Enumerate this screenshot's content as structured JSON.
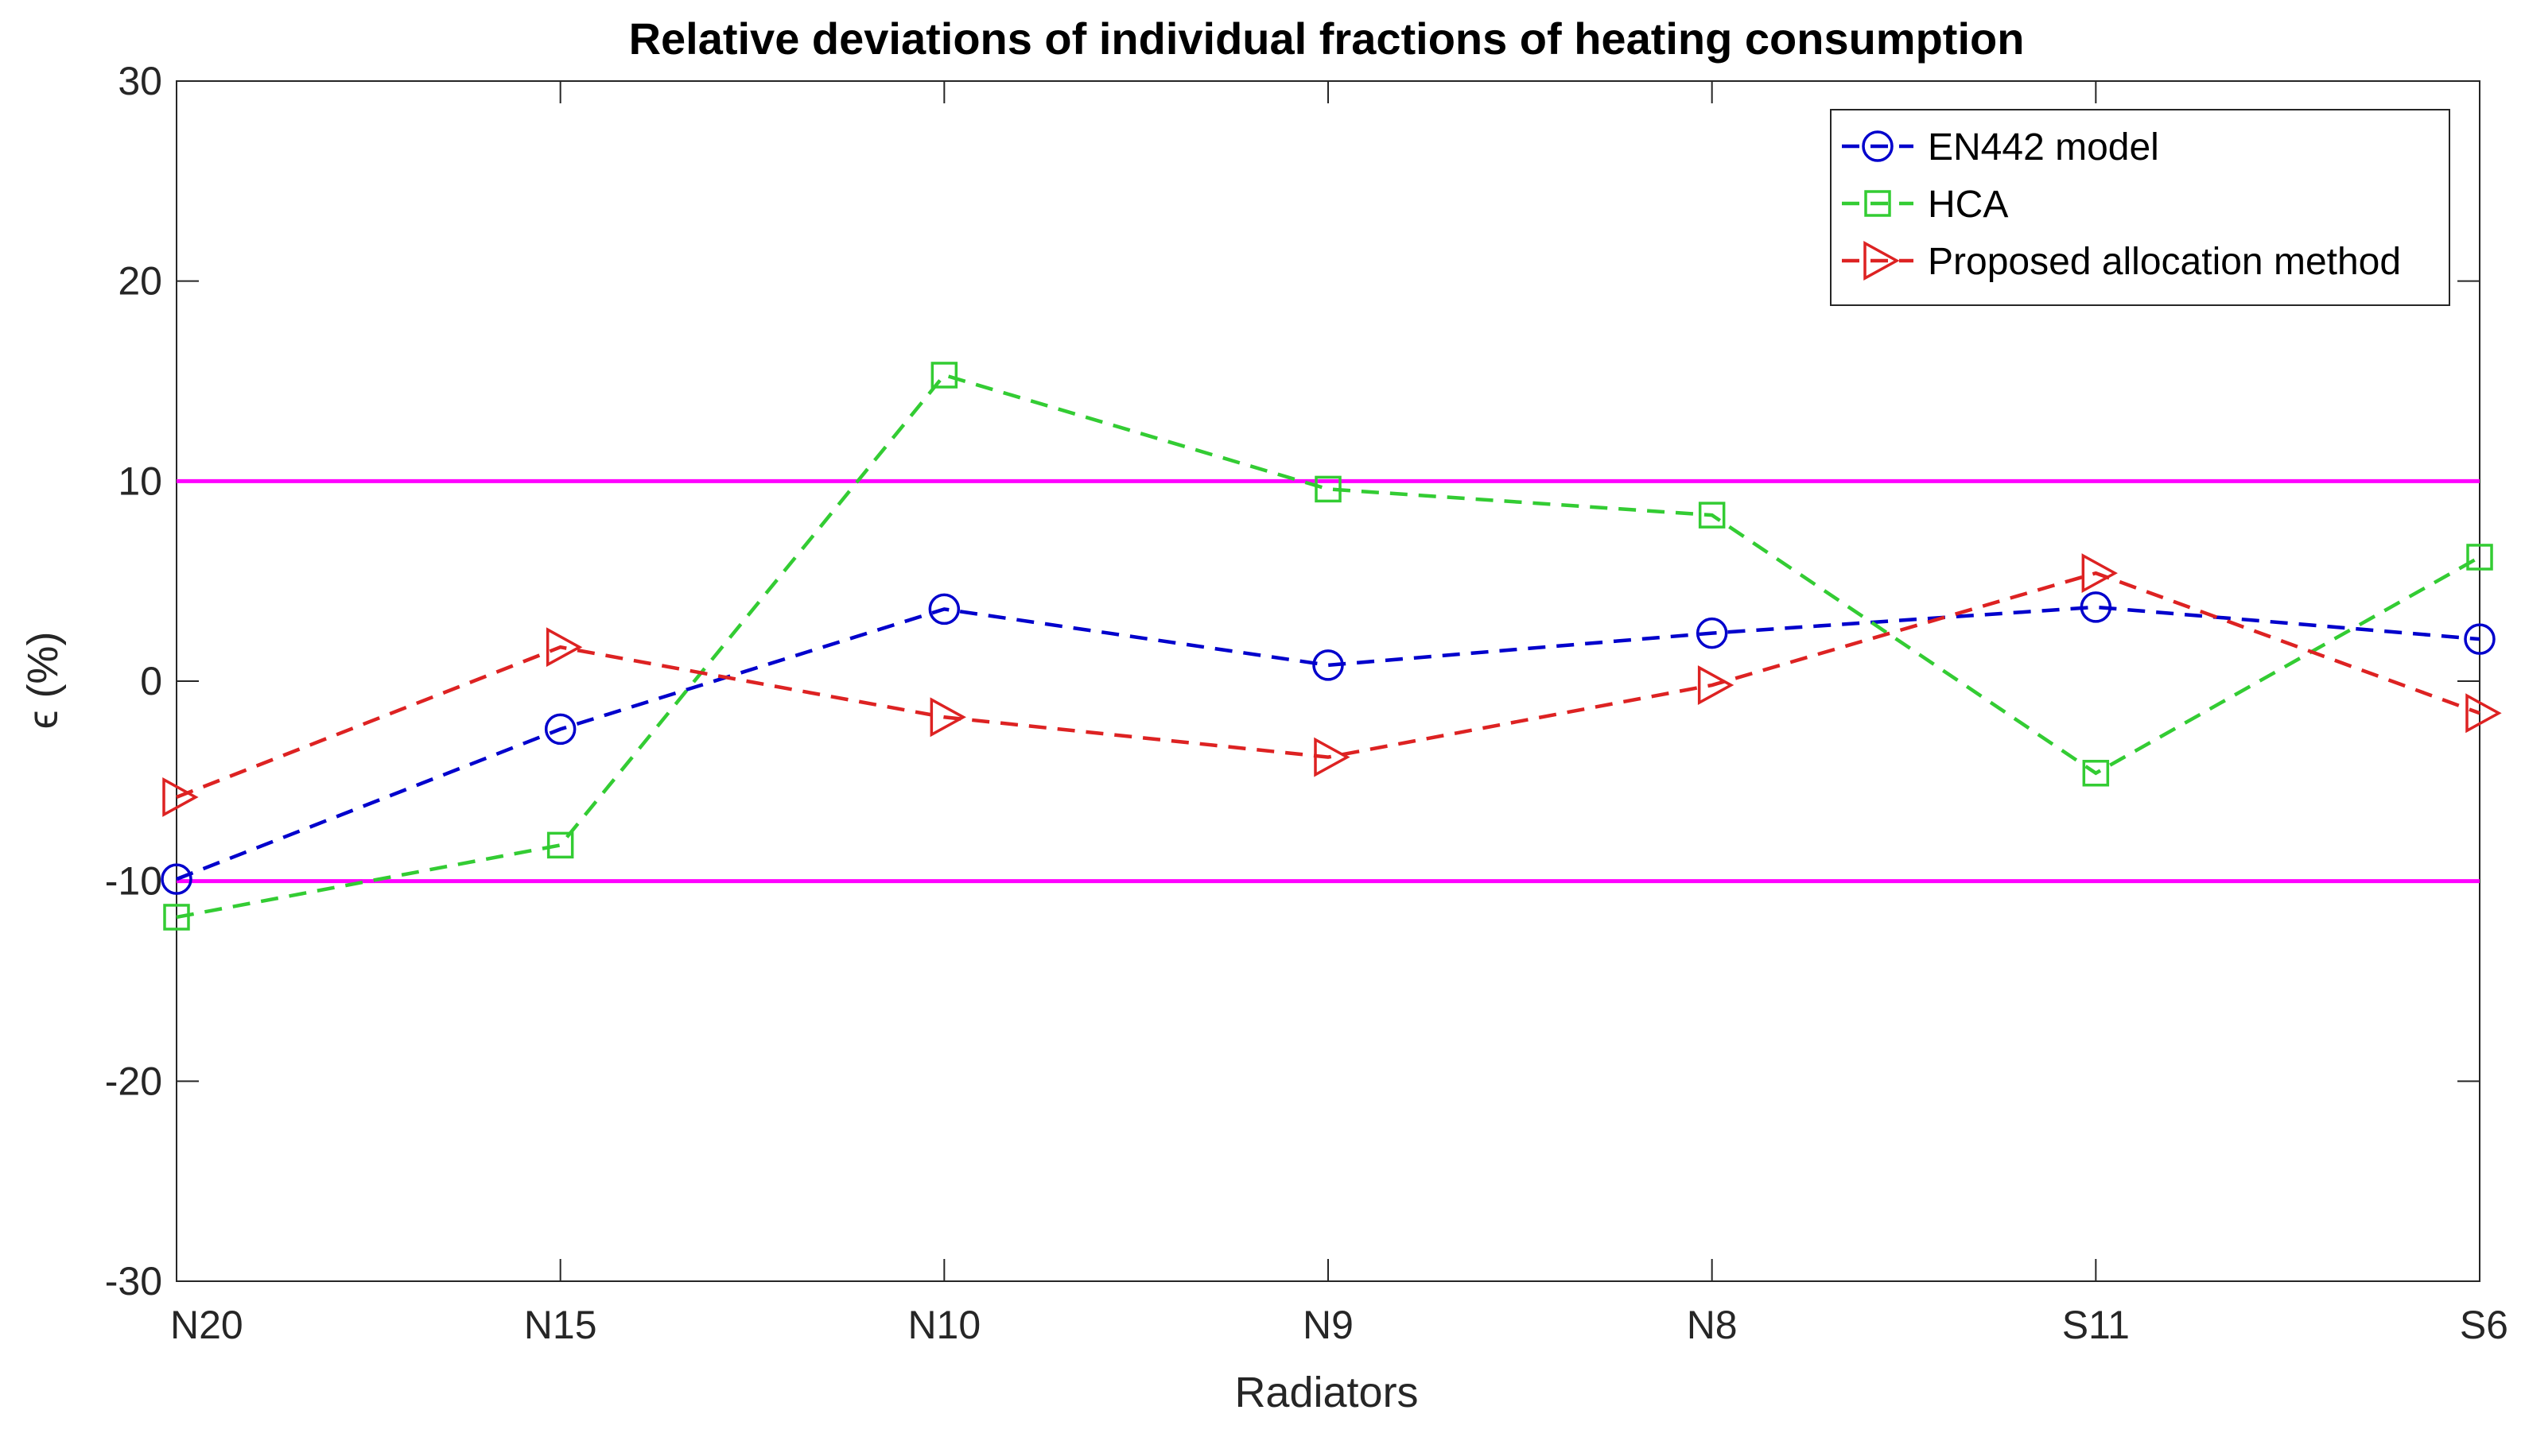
{
  "chart_data": {
    "type": "line",
    "title": "Relative deviations of individual fractions of heating consumption",
    "xlabel": "Radiators",
    "ylabel": "ϵ (%)",
    "categories": [
      "N20",
      "N15",
      "N10",
      "N9",
      "N8",
      "S11",
      "S6"
    ],
    "ylim": [
      -30,
      30
    ],
    "yticks": [
      -30,
      -20,
      -10,
      0,
      10,
      20,
      30
    ],
    "grid": false,
    "legend_position": "top-right",
    "series": [
      {
        "name": "EN442 model",
        "color": "#0000cc",
        "marker": "circle",
        "line_style": "dashed",
        "values": [
          -9.9,
          -2.4,
          3.6,
          0.8,
          2.4,
          3.7,
          2.1
        ]
      },
      {
        "name": "HCA",
        "color": "#33cc33",
        "marker": "square",
        "line_style": "dashed",
        "values": [
          -11.8,
          -8.2,
          15.3,
          9.6,
          8.3,
          -4.6,
          6.2
        ]
      },
      {
        "name": "Proposed allocation method",
        "color": "#dd2222",
        "marker": "triangle-right",
        "line_style": "dashed",
        "values": [
          -5.8,
          1.7,
          -1.8,
          -3.8,
          -0.2,
          5.4,
          -1.6
        ]
      }
    ],
    "reference_lines": [
      {
        "name": "upper-threshold",
        "y": 10,
        "color": "#ff00ff"
      },
      {
        "name": "lower-threshold",
        "y": -10,
        "color": "#ff00ff"
      }
    ]
  }
}
